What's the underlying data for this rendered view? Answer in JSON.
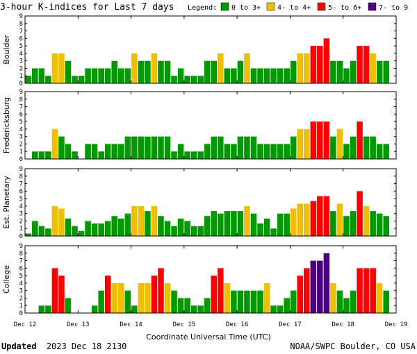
{
  "header": {
    "title": "3-hour K-indices for Last 7 days",
    "legend_label": "Legend:",
    "legend": [
      {
        "label": "0 to 3+",
        "color": "#009900"
      },
      {
        "label": "4- to 4+",
        "color": "#f0c000"
      },
      {
        "label": "5- to 6+",
        "color": "#ff0000"
      },
      {
        "label": "7- to 9",
        "color": "#4a0080"
      }
    ]
  },
  "footer": {
    "updated_label": "Updated",
    "updated_value": "2023 Dec 18 2130",
    "credit": "NOAA/SWPC Boulder, CO USA"
  },
  "chart_data": {
    "type": "bar",
    "xlabel": "Coordinate Universal Time (UTC)",
    "x_ticks": [
      "Dec 12",
      "Dec 13",
      "Dec 14",
      "Dec 15",
      "Dec 16",
      "Dec 17",
      "Dec 18",
      "Dec 19"
    ],
    "y_ticks": [
      "0",
      "1",
      "2",
      "3",
      "4",
      "5",
      "6",
      "7",
      "8",
      "9"
    ],
    "ylim": [
      0,
      9
    ],
    "grid": false,
    "panels": [
      {
        "name": "Boulder",
        "values": [
          1,
          2,
          2,
          1,
          4,
          4,
          3,
          1,
          1,
          2,
          2,
          2,
          2,
          3,
          2,
          2,
          4,
          3,
          3,
          4,
          3,
          3,
          1,
          2,
          1,
          1,
          1,
          3,
          3,
          4,
          2,
          2,
          3,
          4,
          2,
          2,
          2,
          2,
          2,
          2,
          3,
          4,
          4,
          5,
          5,
          6,
          3,
          3,
          2,
          3,
          5,
          5,
          4,
          3,
          3,
          0
        ]
      },
      {
        "name": "Fredericksburg",
        "values": [
          0,
          1,
          1,
          1,
          4,
          3,
          2,
          1,
          0,
          2,
          2,
          1,
          2,
          2,
          2,
          3,
          3,
          3,
          3,
          3,
          3,
          3,
          1,
          2,
          1,
          1,
          1,
          2,
          3,
          3,
          2,
          2,
          3,
          3,
          3,
          2,
          2,
          2,
          2,
          2,
          3,
          4,
          4,
          5,
          5,
          5,
          3,
          4,
          2,
          3,
          5,
          3,
          3,
          2,
          2,
          0
        ]
      },
      {
        "name": "Est. Planetary",
        "values": [
          0.33,
          2,
          1.33,
          1,
          4,
          3.67,
          2.33,
          1.33,
          0.67,
          2,
          1.67,
          1.67,
          2,
          2.67,
          2.33,
          3,
          4,
          4,
          3.33,
          4,
          2.67,
          2,
          1.33,
          2.33,
          2,
          1.33,
          1.33,
          2.67,
          3.33,
          3,
          3.33,
          3.33,
          3.33,
          4,
          3,
          1.67,
          2.33,
          1,
          3,
          3,
          3.67,
          4.33,
          4.33,
          4.67,
          5.33,
          5.33,
          3.33,
          4.33,
          2.67,
          3.33,
          6,
          4,
          3.33,
          3,
          2.67,
          0
        ]
      },
      {
        "name": "College",
        "values": [
          0,
          0,
          1,
          1,
          6,
          5,
          2,
          0,
          0,
          0,
          1,
          3,
          5,
          4,
          4,
          3,
          1,
          4,
          4,
          5,
          6,
          4,
          3,
          2,
          2,
          1,
          1,
          2,
          5,
          6,
          4,
          3,
          3,
          3,
          3,
          3,
          4,
          1,
          1,
          2,
          3,
          5,
          6,
          7,
          7,
          8,
          4,
          3,
          2,
          3,
          6,
          6,
          6,
          4,
          3,
          0
        ]
      }
    ]
  }
}
